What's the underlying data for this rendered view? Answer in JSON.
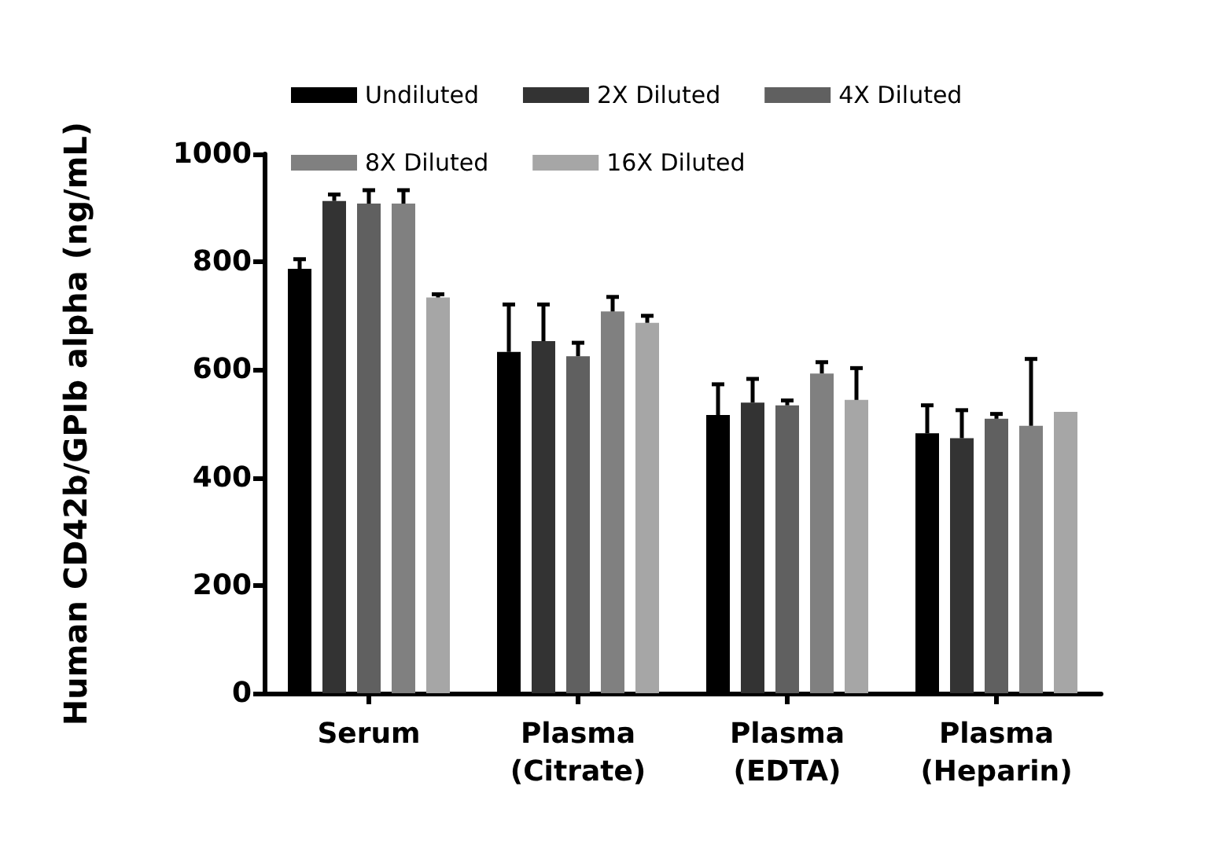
{
  "chart_data": {
    "type": "bar",
    "ylabel": "Human CD42b/GPIb alpha (ng/mL)",
    "categories": [
      "Serum",
      "Plasma\n(Citrate)",
      "Plasma\n(EDTA)",
      "Plasma\n(Heparin)"
    ],
    "series": [
      {
        "name": "Undiluted",
        "color": "#000000",
        "values": [
          787,
          633,
          516,
          482
        ],
        "errors": [
          [
            787,
            805
          ],
          [
            633,
            721
          ],
          [
            516,
            573
          ],
          [
            482,
            534
          ]
        ]
      },
      {
        "name": "2X Diluted",
        "color": "#333333",
        "values": [
          913,
          653,
          539,
          473
        ],
        "errors": [
          [
            913,
            925
          ],
          [
            653,
            721
          ],
          [
            539,
            583
          ],
          [
            473,
            525
          ]
        ]
      },
      {
        "name": "4X Diluted",
        "color": "#606060",
        "values": [
          908,
          625,
          534,
          509
        ],
        "errors": [
          [
            908,
            933
          ],
          [
            625,
            650
          ],
          [
            534,
            543
          ],
          [
            509,
            518
          ]
        ]
      },
      {
        "name": "8X Diluted",
        "color": "#808080",
        "values": [
          908,
          708,
          593,
          496
        ],
        "errors": [
          [
            908,
            933
          ],
          [
            708,
            735
          ],
          [
            593,
            614
          ],
          [
            496,
            620
          ]
        ]
      },
      {
        "name": "16X Diluted",
        "color": "#a6a6a6",
        "values": [
          734,
          687,
          544,
          522
        ],
        "errors": [
          [
            734,
            740
          ],
          [
            687,
            700
          ],
          [
            544,
            603
          ],
          null
        ]
      }
    ],
    "ylim": [
      0,
      1000
    ],
    "yticks": [
      0,
      200,
      400,
      600,
      800,
      1000
    ],
    "grid": false,
    "legend": "top"
  }
}
